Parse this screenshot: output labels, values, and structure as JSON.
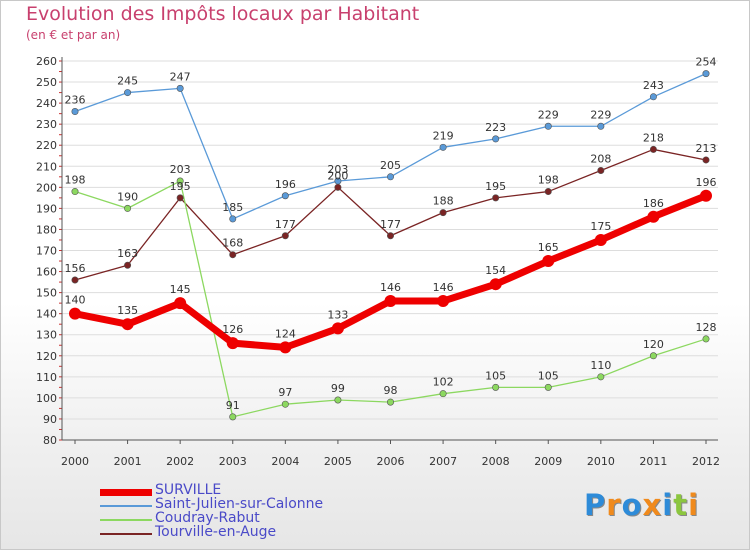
{
  "colors": {
    "title": "#c8406e",
    "axis": "#555555",
    "grid": "#dddddd",
    "labels": "#333333",
    "legend_text": "#4a4ac8"
  },
  "logo": {
    "letters": [
      "P",
      "r",
      "o",
      "x",
      "i",
      "t",
      "i"
    ],
    "colors": [
      "#2e8bd8",
      "#f08a1c",
      "#2e8bd8",
      "#f08a1c",
      "#2e8bd8",
      "#8cc63f",
      "#f08a1c"
    ]
  },
  "chart_data": {
    "type": "line",
    "title": "Evolution des Impôts locaux par Habitant",
    "subtitle": "(en € et par an)",
    "xlabel": "",
    "ylabel": "",
    "x": [
      "2000",
      "2001",
      "2002",
      "2003",
      "2004",
      "2005",
      "2006",
      "2007",
      "2008",
      "2009",
      "2010",
      "2011",
      "2012"
    ],
    "ylim": [
      80,
      260
    ],
    "yticks": [
      80,
      90,
      100,
      110,
      120,
      130,
      140,
      150,
      160,
      170,
      180,
      190,
      200,
      210,
      220,
      230,
      240,
      250,
      260
    ],
    "grid": "horizontal",
    "legend_position": "bottom-left",
    "series": [
      {
        "name": "Tourville-en-Auge",
        "color": "#7a2424",
        "values": [
          156,
          163,
          195,
          168,
          177,
          200,
          177,
          188,
          195,
          198,
          208,
          218,
          213
        ]
      },
      {
        "name": "Coudray-Rabut",
        "color": "#8cd860",
        "values": [
          198,
          190,
          203,
          91,
          97,
          99,
          98,
          102,
          105,
          105,
          110,
          120,
          128
        ]
      },
      {
        "name": "Saint-Julien-sur-Calonne",
        "color": "#5a9ad8",
        "values": [
          236,
          245,
          247,
          185,
          196,
          203,
          205,
          219,
          223,
          229,
          229,
          243,
          254
        ]
      },
      {
        "name": "SURVILLE",
        "color": "#ee0000",
        "values": [
          140,
          135,
          145,
          126,
          124,
          133,
          146,
          146,
          154,
          165,
          175,
          186,
          196
        ]
      }
    ],
    "legend_order": [
      "SURVILLE",
      "Saint-Julien-sur-Calonne",
      "Coudray-Rabut",
      "Tourville-en-Auge"
    ]
  }
}
